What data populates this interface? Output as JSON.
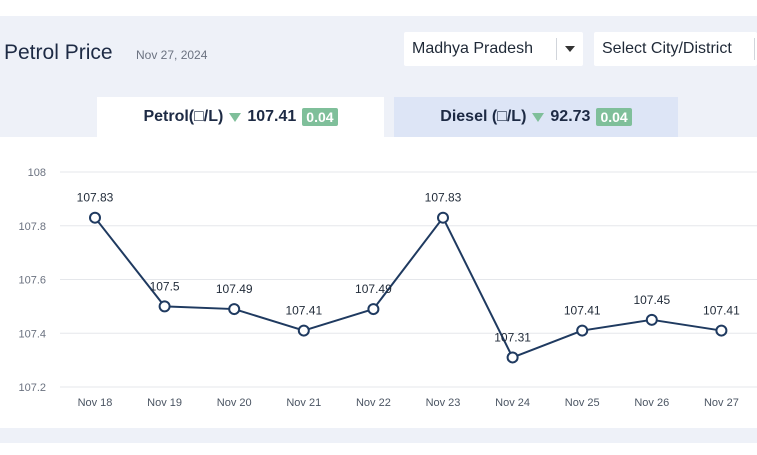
{
  "header": {
    "title": "Petrol Price",
    "date": "Nov 27, 2024",
    "state_select": "Madhya Pradesh",
    "city_select": "Select City/District"
  },
  "tabs": {
    "petrol": {
      "label": "Petrol(□/L)",
      "price": "107.41",
      "change": "0.04"
    },
    "diesel": {
      "label": "Diesel (□/L)",
      "price": "92.73",
      "change": "0.04"
    }
  },
  "colors": {
    "line": "#1f3a60",
    "badge": "#7fbf9a",
    "grid": "#e5e7eb"
  },
  "chart_data": {
    "type": "line",
    "title": "",
    "xlabel": "",
    "ylabel": "",
    "categories": [
      "Nov 18",
      "Nov 19",
      "Nov 20",
      "Nov 21",
      "Nov 22",
      "Nov 23",
      "Nov 24",
      "Nov 25",
      "Nov 26",
      "Nov 27"
    ],
    "values": [
      107.83,
      107.5,
      107.49,
      107.41,
      107.49,
      107.83,
      107.31,
      107.41,
      107.45,
      107.41
    ],
    "data_labels": [
      "107.83",
      "107.5",
      "107.49",
      "107.41",
      "107.49",
      "107.83",
      "107.31",
      "107.41",
      "107.45",
      "107.41"
    ],
    "yticks": [
      "107.2",
      "107.4",
      "107.6",
      "107.8",
      "108"
    ],
    "ylim": [
      107.2,
      108
    ],
    "grid": true
  }
}
